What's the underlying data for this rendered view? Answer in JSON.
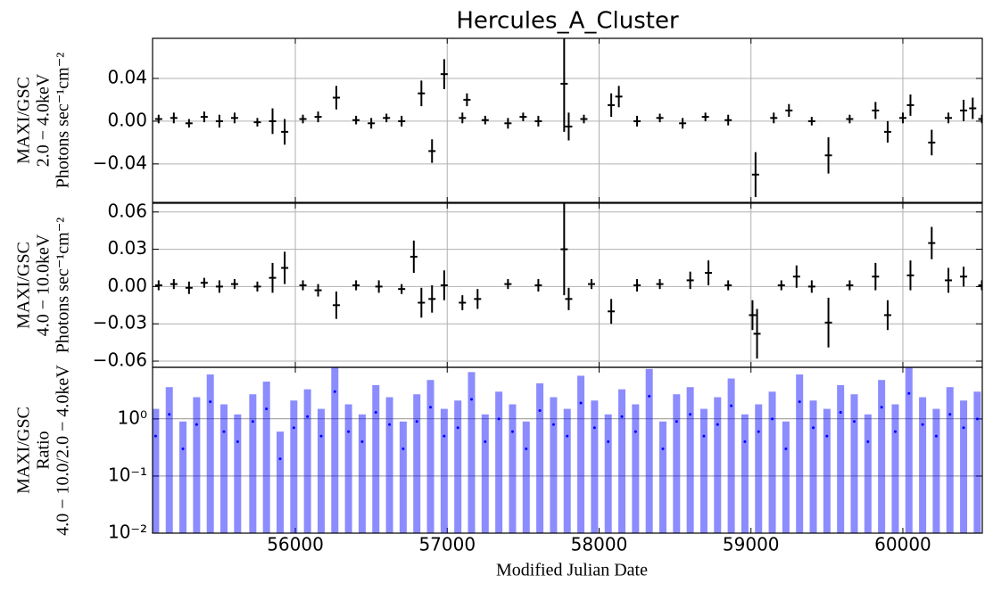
{
  "chart_data": [
    {
      "type": "errorbar",
      "title": "Hercules_A_Cluster",
      "ylabel": [
        "MAXI/GSC",
        "2.0 − 4.0keV",
        "Photons sec⁻¹cm⁻²"
      ],
      "xlim": [
        55060,
        60523
      ],
      "xticks": [
        56000,
        57000,
        58000,
        59000,
        60000
      ],
      "ylim": [
        -0.076,
        0.0775
      ],
      "yticks": [
        {
          "value": -0.04,
          "label": "−0.04"
        },
        {
          "value": 0,
          "label": "0.00"
        },
        {
          "value": 0.04,
          "label": "0.04"
        }
      ],
      "grid": true,
      "color": "#000000",
      "x": [
        55100,
        55200,
        55300,
        55400,
        55500,
        55600,
        55750,
        55850,
        55930,
        56050,
        56150,
        56270,
        56400,
        56500,
        56600,
        56700,
        56830,
        56900,
        56980,
        57100,
        57130,
        57250,
        57400,
        57500,
        57600,
        57770,
        57800,
        57900,
        58080,
        58130,
        58250,
        58400,
        58550,
        58700,
        58850,
        59030,
        59150,
        59250,
        59400,
        59510,
        59650,
        59820,
        59900,
        60000,
        60050,
        60190,
        60300,
        60400,
        60460,
        60520
      ],
      "values": [
        0.002,
        0.003,
        -0.002,
        0.004,
        0,
        0.003,
        -0.001,
        0,
        -0.01,
        0.002,
        0.004,
        0.022,
        0.001,
        -0.002,
        0.003,
        0,
        0.026,
        -0.028,
        0.044,
        0.003,
        0.02,
        0.001,
        -0.002,
        0.004,
        0,
        0.035,
        -0.005,
        0.002,
        0.015,
        0.023,
        0,
        0.003,
        -0.002,
        0.004,
        0.001,
        -0.05,
        0.003,
        0.01,
        0,
        -0.032,
        0.002,
        0.01,
        -0.01,
        0.003,
        0.015,
        -0.02,
        0.003,
        0.01,
        0.012,
        0.002
      ],
      "errors": [
        0.004,
        0.005,
        0.004,
        0.005,
        0.006,
        0.005,
        0.004,
        0.012,
        0.012,
        0.004,
        0.005,
        0.011,
        0.004,
        0.005,
        0.004,
        0.005,
        0.012,
        0.011,
        0.014,
        0.005,
        0.006,
        0.004,
        0.005,
        0.004,
        0.005,
        0.045,
        0.013,
        0.004,
        0.011,
        0.01,
        0.005,
        0.004,
        0.005,
        0.004,
        0.005,
        0.021,
        0.005,
        0.006,
        0.004,
        0.017,
        0.004,
        0.008,
        0.01,
        0.005,
        0.01,
        0.012,
        0.005,
        0.01,
        0.01,
        0.004
      ]
    },
    {
      "type": "errorbar",
      "ylabel": [
        "MAXI/GSC",
        "4.0 − 10.0keV",
        "Photons sec⁻¹cm⁻²"
      ],
      "xlim": [
        55060,
        60523
      ],
      "xticks": [
        56000,
        57000,
        58000,
        59000,
        60000
      ],
      "ylim": [
        -0.065,
        0.067
      ],
      "yticks": [
        {
          "value": -0.06,
          "label": "−0.06"
        },
        {
          "value": -0.03,
          "label": "−0.03"
        },
        {
          "value": 0,
          "label": "0.00"
        },
        {
          "value": 0.03,
          "label": "0.03"
        },
        {
          "value": 0.06,
          "label": "0.06"
        }
      ],
      "grid": true,
      "color": "#000000",
      "x": [
        55100,
        55200,
        55300,
        55400,
        55500,
        55600,
        55750,
        55850,
        55930,
        56050,
        56150,
        56270,
        56400,
        56550,
        56700,
        56780,
        56830,
        56900,
        56980,
        57100,
        57200,
        57400,
        57600,
        57770,
        57800,
        57950,
        58080,
        58250,
        58400,
        58600,
        58720,
        58850,
        59010,
        59040,
        59200,
        59300,
        59400,
        59510,
        59650,
        59820,
        59900,
        60050,
        60190,
        60300,
        60400,
        60520
      ],
      "values": [
        0.001,
        0.002,
        -0.001,
        0.003,
        0,
        0.002,
        0,
        0.007,
        0.015,
        0.001,
        -0.003,
        -0.015,
        0.001,
        0,
        -0.002,
        0.024,
        -0.013,
        -0.01,
        0.001,
        -0.013,
        -0.01,
        0.002,
        0.001,
        0.03,
        -0.01,
        0.002,
        -0.02,
        0.001,
        0.002,
        0.005,
        0.011,
        0.001,
        -0.023,
        -0.038,
        0.001,
        0.008,
        0,
        -0.029,
        0.001,
        0.008,
        -0.023,
        0.009,
        0.035,
        0.005,
        0.008,
        0.001
      ],
      "errors": [
        0.004,
        0.004,
        0.005,
        0.004,
        0.005,
        0.004,
        0.004,
        0.012,
        0.013,
        0.004,
        0.005,
        0.011,
        0.004,
        0.005,
        0.004,
        0.013,
        0.012,
        0.011,
        0.012,
        0.006,
        0.008,
        0.004,
        0.005,
        0.037,
        0.009,
        0.004,
        0.01,
        0.005,
        0.004,
        0.007,
        0.01,
        0.004,
        0.012,
        0.02,
        0.004,
        0.009,
        0.005,
        0.02,
        0.004,
        0.011,
        0.012,
        0.012,
        0.013,
        0.01,
        0.008,
        0.004
      ]
    },
    {
      "type": "ratio",
      "ylabel": [
        "MAXI/GSC",
        "Ratio",
        "4.0 − 10.0/2.0 − 4.0keV"
      ],
      "xlabel": "Modified Julian Date",
      "xlim": [
        55060,
        60523
      ],
      "xticks": [
        56000,
        57000,
        58000,
        59000,
        60000
      ],
      "ylim": [
        0.01,
        8
      ],
      "log_y": true,
      "yticks": [
        {
          "value": 0.01,
          "label": "10⁻²"
        },
        {
          "value": 0.1,
          "label": "10⁻¹"
        },
        {
          "value": 1,
          "label": "10⁰"
        }
      ],
      "grid": true,
      "color": "#0000ff",
      "x": [
        55080,
        55170,
        55260,
        55350,
        55440,
        55530,
        55620,
        55720,
        55810,
        55900,
        55990,
        56080,
        56170,
        56260,
        56350,
        56440,
        56530,
        56620,
        56710,
        56800,
        56890,
        56980,
        57070,
        57160,
        57250,
        57340,
        57430,
        57520,
        57610,
        57700,
        57790,
        57880,
        57970,
        58060,
        58150,
        58240,
        58330,
        58420,
        58510,
        58600,
        58690,
        58780,
        58870,
        58960,
        59050,
        59140,
        59230,
        59320,
        59410,
        59500,
        59590,
        59680,
        59770,
        59860,
        59950,
        60040,
        60130,
        60220,
        60310,
        60400,
        60490
      ],
      "values": [
        0.5,
        1.2,
        0.3,
        0.8,
        2.0,
        0.6,
        0.4,
        0.9,
        1.5,
        0.2,
        0.7,
        1.1,
        0.5,
        3.0,
        0.6,
        0.4,
        1.3,
        0.8,
        0.3,
        0.9,
        1.6,
        0.5,
        0.7,
        2.2,
        0.4,
        1.0,
        0.6,
        0.3,
        1.4,
        0.8,
        0.5,
        1.9,
        0.7,
        0.4,
        1.1,
        0.6,
        2.5,
        0.3,
        0.9,
        1.2,
        0.5,
        0.8,
        1.7,
        0.4,
        0.6,
        1.0,
        0.3,
        2.0,
        0.7,
        0.5,
        1.3,
        0.9,
        0.4,
        1.6,
        0.6,
        2.8,
        0.8,
        0.5,
        1.2,
        0.7,
        1.0
      ],
      "errors": [
        1.0,
        2.4,
        0.6,
        1.6,
        4.0,
        1.2,
        0.8,
        1.8,
        3.0,
        0.4,
        1.4,
        2.2,
        1.0,
        6.0,
        1.2,
        0.8,
        2.6,
        1.6,
        0.6,
        1.8,
        3.2,
        1.0,
        1.4,
        4.4,
        0.8,
        2.0,
        1.2,
        0.6,
        2.8,
        1.6,
        1.0,
        3.8,
        1.4,
        0.8,
        2.2,
        1.2,
        5.0,
        0.6,
        1.8,
        2.4,
        1.0,
        1.6,
        3.4,
        0.8,
        1.2,
        2.0,
        0.6,
        4.0,
        1.4,
        1.0,
        2.6,
        1.8,
        0.8,
        3.2,
        1.2,
        5.6,
        1.6,
        1.0,
        2.4,
        1.4,
        2.0
      ]
    }
  ]
}
